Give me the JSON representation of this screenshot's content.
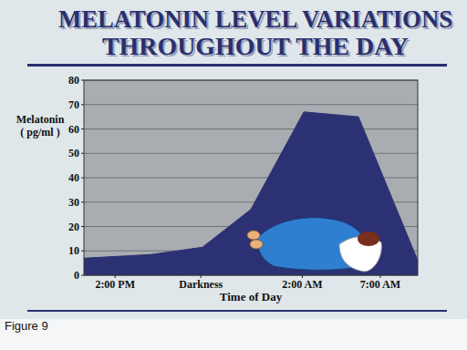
{
  "chart_data": {
    "type": "area",
    "title": "MELATONIN LEVEL VARIATIONS\nTHROUGHOUT THE DAY",
    "y_label": "Melatonin\n( pg/ml )",
    "x_label": "Time of Day",
    "annotations": [
      "Figure 9"
    ],
    "x": [
      12,
      16.3,
      19.6,
      22.7,
      26.1,
      29.6,
      33.4
    ],
    "values": [
      7,
      8.5,
      11.5,
      27,
      67,
      65,
      6
    ],
    "color": "#2b3172",
    "xlim": [
      12,
      33.4
    ],
    "xticks": [
      {
        "value": 14,
        "label": "2:00 PM"
      },
      {
        "value": 19.5,
        "label": "Darkness"
      },
      {
        "value": 26,
        "label": "2:00 AM"
      },
      {
        "value": 31,
        "label": "7:00 AM"
      }
    ],
    "ylim": [
      0,
      80
    ],
    "yticks": [
      0,
      10,
      20,
      30,
      40,
      50,
      60,
      70,
      80
    ],
    "grid": true
  }
}
